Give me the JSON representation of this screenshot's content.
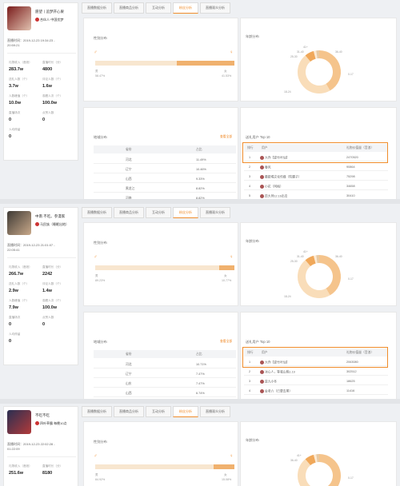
{
  "tabs": [
    "直播数据分析",
    "直播商品分析",
    "互动分析",
    "粉丝分析",
    "直播观众分析"
  ],
  "panels": [
    {
      "name": "愿望丨追梦开心果",
      "link": "合伙人·中国优梦",
      "date": "直播时间：2019-12-23 19:34:23 - 20:59:21",
      "stats": [
        {
          "label": "礼物收入（音浪）",
          "value": "283.7w"
        },
        {
          "label": "直播时长（分）",
          "value": "4800"
        },
        {
          "label": "送礼人数（个）",
          "value": "3.7w"
        },
        {
          "label": "评论人数（个）",
          "value": "1.6w"
        },
        {
          "label": "人数峰值（个）",
          "value": "10.0w"
        },
        {
          "label": "观看人次（个）",
          "value": "100.0w"
        },
        {
          "label": "直播场次",
          "value": "0"
        },
        {
          "label": "点赞人数",
          "value": "0"
        },
        {
          "label": "人均停留",
          "value": "0"
        }
      ],
      "gender_title": "性别分布",
      "gender_male_label": "男",
      "gender_male": "58.47%",
      "gender_female_label": "女",
      "gender_female": "41.53%",
      "age_title": "年龄分布",
      "age_labels": [
        "0-17",
        "18-24",
        "25-30",
        "31-40",
        "41+",
        "36-40"
      ],
      "region_title": "地域分布",
      "region_more": "查看全部",
      "region_cols": [
        "省份",
        "占比"
      ],
      "regions": [
        [
          "河北",
          "11.49%"
        ],
        [
          "辽宁",
          "10.46%"
        ],
        [
          "山西",
          "9.33%"
        ],
        [
          "黑龙江",
          "8.82%"
        ],
        [
          "河南",
          "8.82%"
        ]
      ],
      "top_title": "送礼用户 Top 10",
      "top_cols": [
        "排行",
        "用户",
        "礼物价值量（音浪）"
      ],
      "tops": [
        [
          "1",
          "大乔【夏竹叶仙】",
          "2470520"
        ],
        [
          "2",
          "春风",
          "90864"
        ],
        [
          "3",
          "最能喝文化传媒（陀螺子）",
          "75298"
        ],
        [
          "4",
          "小花（阿梅）",
          "34658"
        ],
        [
          "5",
          "愿大师12.16出击",
          "30410"
        ]
      ]
    },
    {
      "name": "中南 不吃。参漫家",
      "link": "马民族（睡眠出地）",
      "date": "直播时间：2019-12-23 21:01:07 - 22:05:41",
      "stats": [
        {
          "label": "礼物收入（音浪）",
          "value": "266.7w"
        },
        {
          "label": "直播时长（分）",
          "value": "2242"
        },
        {
          "label": "送礼人数（个）",
          "value": "2.9w"
        },
        {
          "label": "评论人数（个）",
          "value": "1.4w"
        },
        {
          "label": "人数峰值（个）",
          "value": "7.9w"
        },
        {
          "label": "观看人次（个）",
          "value": "100.0w"
        },
        {
          "label": "直播场次",
          "value": "0"
        },
        {
          "label": "点赞人数",
          "value": "0"
        },
        {
          "label": "人均停留",
          "value": "0"
        }
      ],
      "gender_title": "性别分布",
      "gender_male_label": "男",
      "gender_male": "89.23%",
      "gender_female_label": "女",
      "gender_female": "10.77%",
      "age_title": "年龄分布",
      "age_labels": [
        "0-17",
        "18-24",
        "25-30",
        "31-40",
        "41+",
        "36-40"
      ],
      "region_title": "地域分布",
      "region_more": "查看全部",
      "region_cols": [
        "省份",
        "占比"
      ],
      "regions": [
        [
          "河北",
          "10.71%"
        ],
        [
          "辽宁",
          "7.47%"
        ],
        [
          "山东",
          "7.47%"
        ],
        [
          "山西",
          "6.74%"
        ],
        [
          "河南",
          "5.50%"
        ]
      ],
      "top_title": "送礼用户 Top 10",
      "top_cols": [
        "排行",
        "用户",
        "礼物价值量（音浪）"
      ],
      "tops": [
        [
          "1",
          "大乔【夏竹叶仙】",
          "2063080"
        ],
        [
          "2",
          "冰心人，等我山桃1.19",
          "302512"
        ],
        [
          "3",
          "夏九小冬",
          "18625"
        ],
        [
          "4",
          "金老六（已要去黑）",
          "11416"
        ],
        [
          "5",
          "启李山的猫",
          "11338"
        ]
      ]
    },
    {
      "name": "不吃不吃",
      "link": "四叶草霸 每晚10点",
      "date": "直播时间：2019-12-23 22:02:28 - 01:22:09",
      "stats": [
        {
          "label": "礼物收入（音浪）",
          "value": "251.6w"
        },
        {
          "label": "直播时长（分）",
          "value": "8180"
        }
      ],
      "gender_title": "性别分布",
      "gender_male_label": "男",
      "gender_male": "84.92%",
      "gender_female_label": "女",
      "gender_female": "15.08%",
      "age_title": "年龄分布",
      "age_labels": [
        "0-17",
        "18-24",
        "36-40",
        "41+"
      ]
    }
  ]
}
